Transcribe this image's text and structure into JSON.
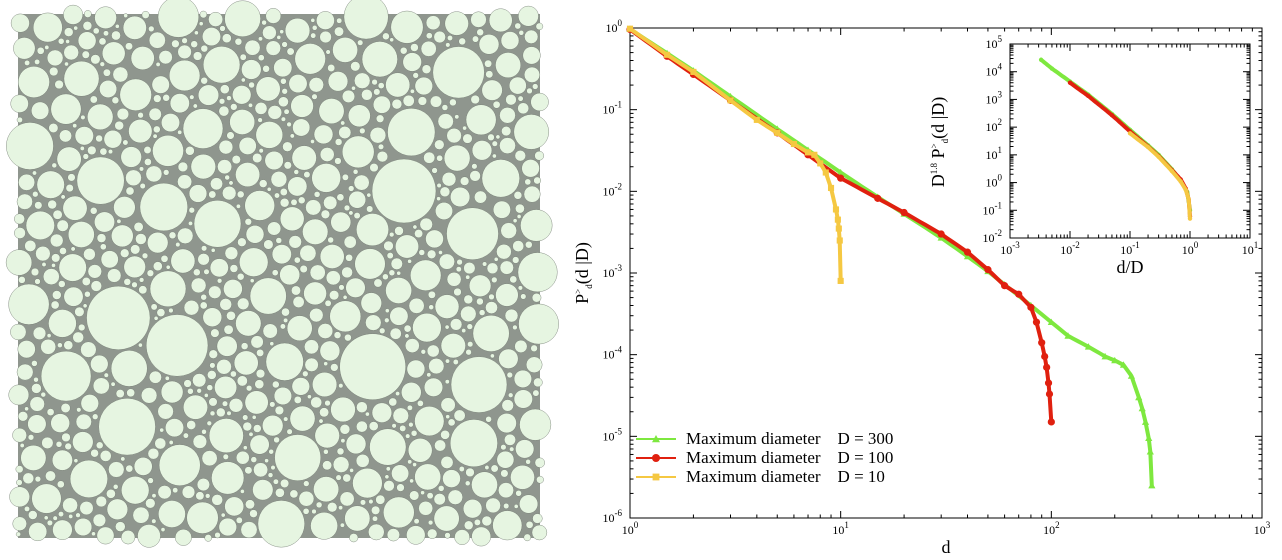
{
  "packing": {
    "circle_color": "#e6f5e1",
    "background_color": "#8f968e"
  },
  "chart_data": {
    "type": "line",
    "main": {
      "xlabel": "d",
      "ylabel": "P>d(d|D)",
      "xscale": "log",
      "yscale": "log",
      "xlim": [
        1,
        1000
      ],
      "ylim": [
        1e-06,
        1
      ],
      "x_ticks": [
        {
          "b": "10",
          "e": "0"
        },
        {
          "b": "10",
          "e": "1"
        },
        {
          "b": "10",
          "e": "2"
        },
        {
          "b": "10",
          "e": "3"
        }
      ],
      "y_ticks": [
        {
          "b": "10",
          "e": "0"
        },
        {
          "b": "10",
          "e": "-1"
        },
        {
          "b": "10",
          "e": "-2"
        },
        {
          "b": "10",
          "e": "-3"
        },
        {
          "b": "10",
          "e": "-4"
        },
        {
          "b": "10",
          "e": "-5"
        },
        {
          "b": "10",
          "e": "-6"
        }
      ],
      "series": [
        {
          "name": "Maximum diameter    D = 300",
          "color": "#7ee83f",
          "marker": "triangle",
          "points": [
            [
              1,
              0.97
            ],
            [
              1.5,
              0.49
            ],
            [
              2,
              0.3
            ],
            [
              3,
              0.145
            ],
            [
              5,
              0.058
            ],
            [
              7,
              0.032
            ],
            [
              10,
              0.017
            ],
            [
              15,
              0.0085
            ],
            [
              20,
              0.0053
            ],
            [
              30,
              0.0027
            ],
            [
              40,
              0.0016
            ],
            [
              50,
              0.00105
            ],
            [
              60,
              0.00072
            ],
            [
              80,
              0.0004
            ],
            [
              100,
              0.00025
            ],
            [
              120,
              0.00017
            ],
            [
              150,
              0.000125
            ],
            [
              180,
              9.5e-05
            ],
            [
              200,
              8.5e-05
            ],
            [
              220,
              7.5e-05
            ],
            [
              240,
              5.5e-05
            ],
            [
              260,
              3e-05
            ],
            [
              270,
              2.2e-05
            ],
            [
              280,
              1.5e-05
            ],
            [
              290,
              9.5e-06
            ],
            [
              295,
              6.5e-06
            ],
            [
              300,
              2.5e-06
            ]
          ]
        },
        {
          "name": "Maximum diameter    D = 100",
          "color": "#e0200f",
          "marker": "circle",
          "points": [
            [
              1,
              0.96
            ],
            [
              1.5,
              0.45
            ],
            [
              2,
              0.27
            ],
            [
              3,
              0.13
            ],
            [
              5,
              0.052
            ],
            [
              7,
              0.028
            ],
            [
              10,
              0.0145
            ],
            [
              15,
              0.0082
            ],
            [
              20,
              0.0055
            ],
            [
              30,
              0.003
            ],
            [
              40,
              0.0018
            ],
            [
              50,
              0.0011
            ],
            [
              60,
              0.0007
            ],
            [
              70,
              0.00055
            ],
            [
              80,
              0.00038
            ],
            [
              85,
              0.00025
            ],
            [
              90,
              0.00014
            ],
            [
              93,
              9.5e-05
            ],
            [
              95,
              7e-05
            ],
            [
              97,
              4.5e-05
            ],
            [
              98,
              3.3e-05
            ],
            [
              100,
              1.5e-05
            ]
          ]
        },
        {
          "name": "Maximum diameter    D = 10",
          "color": "#f5c842",
          "marker": "square",
          "points": [
            [
              1,
              0.98
            ],
            [
              1.5,
              0.47
            ],
            [
              2,
              0.29
            ],
            [
              3,
              0.13
            ],
            [
              4,
              0.075
            ],
            [
              5,
              0.052
            ],
            [
              6,
              0.038
            ],
            [
              7,
              0.03
            ],
            [
              7.5,
              0.028
            ],
            [
              8,
              0.022
            ],
            [
              8.5,
              0.017
            ],
            [
              9,
              0.011
            ],
            [
              9.5,
              0.006
            ],
            [
              9.7,
              0.0045
            ],
            [
              9.8,
              0.0035
            ],
            [
              9.9,
              0.0025
            ],
            [
              10,
              0.0008
            ]
          ]
        }
      ]
    },
    "inset": {
      "xlabel": "d/D",
      "ylabel": "D1.8 P>d(d|D)",
      "xscale": "log",
      "yscale": "log",
      "xlim": [
        0.001,
        10
      ],
      "ylim": [
        0.01,
        100000
      ],
      "x_ticks": [
        {
          "b": "10",
          "e": "-3"
        },
        {
          "b": "10",
          "e": "-2"
        },
        {
          "b": "10",
          "e": "-1"
        },
        {
          "b": "10",
          "e": "0"
        },
        {
          "b": "10",
          "e": "1"
        }
      ],
      "y_ticks": [
        {
          "b": "10",
          "e": "5"
        },
        {
          "b": "10",
          "e": "4"
        },
        {
          "b": "10",
          "e": "3"
        },
        {
          "b": "10",
          "e": "2"
        },
        {
          "b": "10",
          "e": "1"
        },
        {
          "b": "10",
          "e": "0"
        },
        {
          "b": "10",
          "e": "-1"
        },
        {
          "b": "10",
          "e": "-2"
        }
      ],
      "series": [
        {
          "name": "D = 300",
          "color": "#7ee83f",
          "points": [
            [
              0.0033,
              27000
            ],
            [
              0.005,
              13000
            ],
            [
              0.01,
              4400
            ],
            [
              0.02,
              1500
            ],
            [
              0.05,
              300
            ],
            [
              0.1,
              80
            ],
            [
              0.2,
              22
            ],
            [
              0.3,
              10
            ],
            [
              0.5,
              3
            ],
            [
              0.7,
              1.2
            ],
            [
              0.9,
              0.45
            ],
            [
              1,
              0.1
            ]
          ]
        },
        {
          "name": "D = 100",
          "color": "#e0200f",
          "points": [
            [
              0.01,
              4000
            ],
            [
              0.02,
              1350
            ],
            [
              0.05,
              270
            ],
            [
              0.1,
              70
            ],
            [
              0.2,
              20
            ],
            [
              0.3,
              9
            ],
            [
              0.5,
              2.8
            ],
            [
              0.7,
              1.3
            ],
            [
              0.85,
              0.6
            ],
            [
              0.95,
              0.25
            ],
            [
              1,
              0.06
            ]
          ]
        },
        {
          "name": "D = 10",
          "color": "#f5c842",
          "points": [
            [
              0.1,
              60
            ],
            [
              0.2,
              19
            ],
            [
              0.3,
              8.5
            ],
            [
              0.5,
              2.6
            ],
            [
              0.7,
              1.1
            ],
            [
              0.85,
              0.55
            ],
            [
              0.95,
              0.25
            ],
            [
              1,
              0.05
            ]
          ]
        }
      ]
    }
  }
}
